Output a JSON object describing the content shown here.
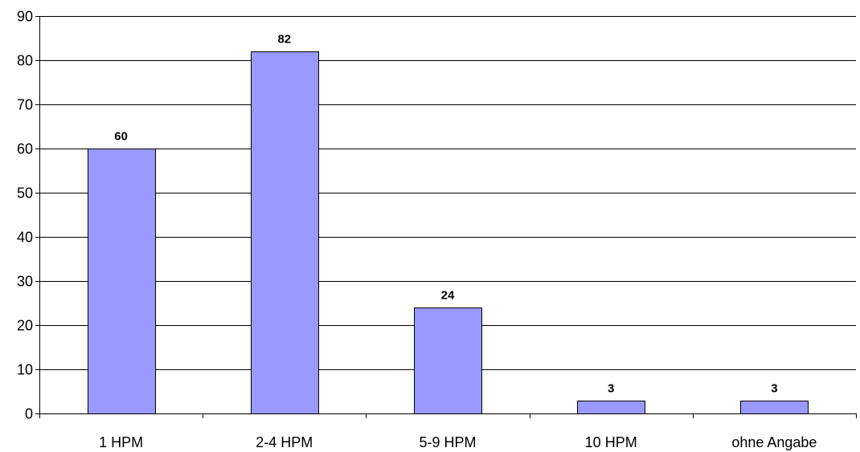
{
  "chart_data": {
    "type": "bar",
    "title": "",
    "xlabel": "",
    "ylabel": "",
    "categories": [
      "1 HPM",
      "2-4 HPM",
      "5-9 HPM",
      "10 HPM",
      "ohne Angabe"
    ],
    "values": [
      60,
      82,
      24,
      3,
      3
    ],
    "data_labels": [
      "60",
      "82",
      "24",
      "3",
      "3"
    ],
    "ylim": [
      0,
      90
    ],
    "yticks": [
      0,
      10,
      20,
      30,
      40,
      50,
      60,
      70,
      80,
      90
    ],
    "ytick_labels": [
      "0",
      "10",
      "20",
      "30",
      "40",
      "50",
      "60",
      "70",
      "80",
      "90"
    ],
    "grid": true,
    "legend": "none",
    "colors": {
      "bar_fill": "#9999ff",
      "bar_stroke": "#000000",
      "grid": "#000000",
      "background": "#ffffff"
    }
  }
}
